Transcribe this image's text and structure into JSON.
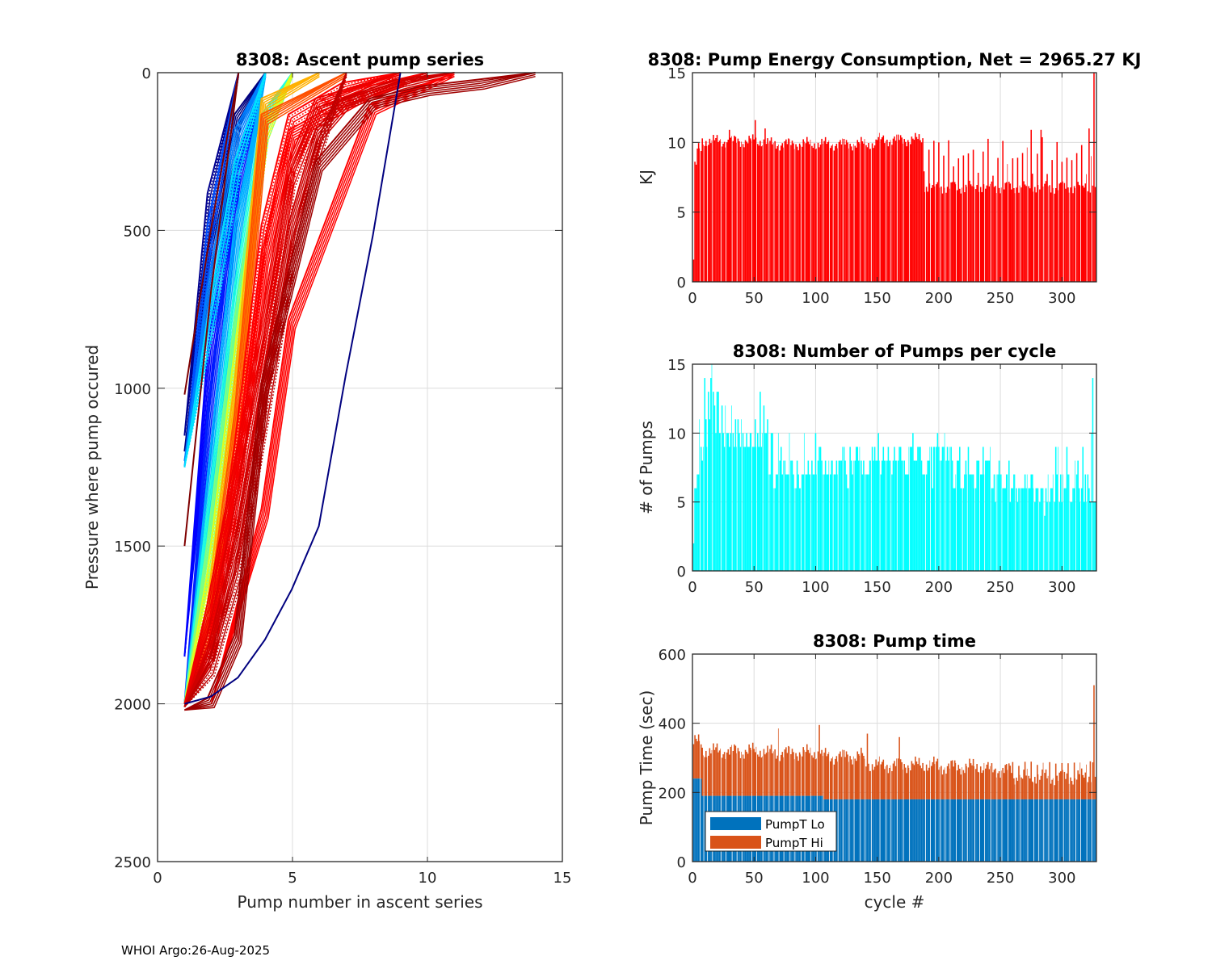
{
  "footer": "WHOI Argo:26-Aug-2025",
  "chart_data": [
    {
      "type": "line",
      "id": "ascent",
      "title": "8308: Ascent pump series",
      "xlabel": "Pump number in ascent series",
      "ylabel": "Pressure where pump occured",
      "xlim": [
        0,
        15
      ],
      "ylim": [
        0,
        2500
      ],
      "y_reversed": true,
      "xticks": [
        "0",
        "5",
        "10",
        "15"
      ],
      "yticks": [
        "0",
        "500",
        "1000",
        "1500",
        "2000",
        "2500"
      ],
      "grid": true,
      "colormap": "jet (by cycle)",
      "series": [
        {
          "color": "#00007f",
          "x": [
            1,
            2,
            3,
            4
          ],
          "y": [
            1200,
            600,
            150,
            0
          ]
        },
        {
          "color": "#00008f",
          "x": [
            1,
            2,
            3
          ],
          "y": [
            1150,
            400,
            0
          ]
        },
        {
          "color": "#0000ff",
          "x": [
            1,
            2,
            3,
            4
          ],
          "y": [
            1850,
            900,
            300,
            0
          ]
        },
        {
          "color": "#0020ff",
          "x": [
            1,
            2,
            3,
            4
          ],
          "y": [
            2000,
            1100,
            350,
            0
          ]
        },
        {
          "color": "#0050ff",
          "x": [
            1,
            2,
            3
          ],
          "y": [
            1250,
            500,
            0
          ]
        },
        {
          "color": "#0080ff",
          "x": [
            1,
            2,
            3,
            4
          ],
          "y": [
            1230,
            700,
            200,
            0
          ]
        },
        {
          "color": "#00b0ff",
          "x": [
            1,
            2,
            3,
            4
          ],
          "y": [
            2000,
            1300,
            500,
            0
          ]
        },
        {
          "color": "#00e0ff",
          "x": [
            1,
            2,
            3,
            4
          ],
          "y": [
            1250,
            800,
            300,
            0
          ]
        },
        {
          "color": "#20ffdf",
          "x": [
            1,
            2,
            3,
            4,
            5
          ],
          "y": [
            2000,
            1400,
            700,
            150,
            0
          ]
        },
        {
          "color": "#80ff7f",
          "x": [
            1,
            2,
            3,
            4,
            5
          ],
          "y": [
            2000,
            1500,
            800,
            200,
            0
          ]
        },
        {
          "color": "#dfff20",
          "x": [
            1,
            2,
            3,
            4,
            5
          ],
          "y": [
            2000,
            1600,
            900,
            200,
            0
          ]
        },
        {
          "color": "#ffb000",
          "x": [
            1,
            2,
            3,
            4,
            6
          ],
          "y": [
            2010,
            1700,
            1000,
            100,
            0
          ]
        },
        {
          "color": "#ff5000",
          "x": [
            1,
            2,
            3,
            4,
            7
          ],
          "y": [
            2010,
            1750,
            1100,
            150,
            0
          ]
        },
        {
          "color": "#ff0000",
          "x": [
            1,
            2,
            3,
            4,
            5,
            7,
            9
          ],
          "y": [
            2000,
            1800,
            1200,
            500,
            150,
            50,
            0
          ]
        },
        {
          "color": "#ff0000",
          "x": [
            1,
            2,
            3,
            4,
            5,
            8,
            10
          ],
          "y": [
            2000,
            1850,
            1300,
            600,
            200,
            60,
            0
          ]
        },
        {
          "color": "#ef0000",
          "x": [
            1,
            2,
            3,
            4,
            5,
            6,
            9
          ],
          "y": [
            2000,
            1700,
            1250,
            800,
            300,
            100,
            0
          ]
        },
        {
          "color": "#df0000",
          "x": [
            1,
            2,
            3,
            4,
            5,
            6,
            10
          ],
          "y": [
            2010,
            1800,
            1400,
            900,
            350,
            130,
            0
          ]
        },
        {
          "color": "#cf0000",
          "x": [
            1,
            2,
            3,
            4,
            5,
            6,
            7,
            9,
            11
          ],
          "y": [
            2010,
            1850,
            1500,
            1000,
            500,
            200,
            100,
            40,
            0
          ]
        },
        {
          "color": "#ff0000",
          "x": [
            2,
            4,
            5,
            8,
            11
          ],
          "y": [
            2000,
            1400,
            800,
            120,
            0
          ]
        },
        {
          "color": "#bf0000",
          "x": [
            1,
            2,
            3,
            4,
            5,
            6,
            7
          ],
          "y": [
            2010,
            1900,
            1600,
            1100,
            600,
            250,
            0
          ]
        },
        {
          "color": "#9f0000",
          "x": [
            1,
            2,
            3,
            4,
            6,
            8,
            10,
            12,
            14
          ],
          "y": [
            2020,
            2000,
            1800,
            1000,
            300,
            100,
            60,
            40,
            0
          ]
        },
        {
          "color": "#7f0000",
          "x": [
            1,
            2,
            3
          ],
          "y": [
            1020,
            500,
            0
          ]
        },
        {
          "color": "#7f0000",
          "x": [
            1,
            2,
            3
          ],
          "y": [
            1500,
            700,
            0
          ]
        },
        {
          "color": "#00007f",
          "x": [
            1,
            2,
            3,
            4,
            5,
            6,
            7,
            8,
            9
          ],
          "y": [
            2000,
            1980,
            1920,
            1800,
            1640,
            1440,
            960,
            520,
            0
          ]
        }
      ]
    },
    {
      "type": "bar",
      "id": "energy",
      "title": "8308: Pump Energy Consumption,  Net = 2965.27 KJ",
      "xlabel": "",
      "ylabel": "KJ",
      "xlim": [
        0,
        328
      ],
      "ylim": [
        0,
        15
      ],
      "xticks": [
        "0",
        "50",
        "100",
        "150",
        "200",
        "250",
        "300"
      ],
      "yticks": [
        "0",
        "5",
        "10",
        "15"
      ],
      "color": "#ff0000",
      "grid": true,
      "segments": [
        {
          "from": 1,
          "to": 2,
          "value": 1.7
        },
        {
          "from": 2,
          "to": 4,
          "value": 8.2
        },
        {
          "from": 4,
          "to": 8,
          "value": 9.5
        },
        {
          "from": 8,
          "to": 60,
          "value": 10.1
        },
        {
          "from": 60,
          "to": 150,
          "value": 9.9
        },
        {
          "from": 150,
          "to": 188,
          "value": 10.2
        },
        {
          "from": 188,
          "to": 328,
          "value": 6.8
        }
      ],
      "spikes": [
        {
          "cycle": 51,
          "value": 11.6
        },
        {
          "cycle": 30,
          "value": 10.9
        },
        {
          "cycle": 59,
          "value": 11.0
        },
        {
          "cycle": 200,
          "value": 10.0
        },
        {
          "cycle": 275,
          "value": 10.9
        },
        {
          "cycle": 283,
          "value": 10.9
        },
        {
          "cycle": 322,
          "value": 11.0
        },
        {
          "cycle": 326,
          "value": 15.0
        }
      ]
    },
    {
      "type": "bar",
      "id": "pumps",
      "title": "8308: Number of Pumps per cycle",
      "xlabel": "",
      "ylabel": "# of Pumps",
      "xlim": [
        0,
        328
      ],
      "ylim": [
        0,
        15
      ],
      "xticks": [
        "0",
        "50",
        "100",
        "150",
        "200",
        "250",
        "300"
      ],
      "yticks": [
        "0",
        "5",
        "10",
        "15"
      ],
      "color": "#00ffff",
      "grid": true,
      "values": [
        2,
        6,
        6,
        7,
        7,
        11,
        9,
        8,
        9,
        14,
        11,
        9,
        13,
        11,
        14,
        15,
        13,
        12,
        10,
        13,
        13,
        10,
        10,
        12,
        10,
        9,
        12,
        10,
        10,
        9,
        10,
        12,
        10,
        9,
        11,
        9,
        11,
        10,
        9,
        11,
        10,
        9,
        9,
        10,
        9,
        9,
        10,
        10,
        9,
        9,
        11,
        9,
        10,
        9,
        13,
        9,
        10,
        12,
        10,
        10,
        11,
        7,
        7,
        10,
        10,
        6,
        6,
        7,
        7,
        10,
        8,
        9,
        7,
        8,
        8,
        7,
        7,
        7,
        10,
        8,
        8,
        7,
        6,
        6,
        8,
        7,
        6,
        6,
        7,
        7,
        10,
        7,
        7,
        8,
        7,
        7,
        8,
        7,
        7,
        10,
        7,
        8,
        9,
        9,
        8,
        7,
        7,
        8,
        7,
        7,
        8,
        7,
        8,
        8,
        7,
        7,
        8,
        7,
        8,
        8,
        8,
        9,
        9,
        8,
        7,
        6,
        6,
        9,
        8,
        7,
        8,
        8,
        9,
        9,
        8,
        9,
        8,
        7,
        8,
        7,
        7,
        7,
        7,
        8,
        8,
        9,
        8,
        9,
        8,
        8,
        10,
        8,
        7,
        8,
        9,
        8,
        8,
        8,
        9,
        8,
        8,
        7,
        8,
        9,
        8,
        8,
        8,
        9,
        9,
        8,
        8,
        8,
        7,
        7,
        7,
        9,
        9,
        9,
        10,
        8,
        8,
        8,
        9,
        9,
        9,
        8,
        7,
        7,
        7,
        7,
        8,
        8,
        9,
        9,
        6,
        9,
        9,
        9,
        10,
        9,
        8,
        8,
        9,
        9,
        10,
        8,
        9,
        8,
        9,
        9,
        8,
        6,
        6,
        7,
        8,
        8,
        9,
        6,
        6,
        6,
        7,
        8,
        7,
        9,
        7,
        7,
        7,
        7,
        6,
        6,
        8,
        8,
        8,
        7,
        7,
        9,
        7,
        8,
        8,
        8,
        8,
        9,
        6,
        6,
        7,
        5,
        7,
        7,
        8,
        7,
        7,
        6,
        6,
        6,
        7,
        7,
        8,
        5,
        6,
        6,
        7,
        7,
        6,
        5,
        6,
        6,
        6,
        6,
        6,
        7,
        6,
        7,
        6,
        6,
        7,
        7,
        6,
        5,
        6,
        6,
        6,
        5,
        6,
        6,
        6,
        4,
        6,
        5,
        7,
        5,
        6,
        6,
        7,
        5,
        9,
        7,
        9,
        5,
        7,
        5,
        7,
        6,
        6,
        9,
        7,
        7,
        5,
        5,
        6,
        6,
        8,
        7,
        8,
        6,
        5,
        6,
        9,
        5,
        7,
        5,
        7,
        6,
        5,
        10,
        14,
        5,
        5,
        5,
        5
      ]
    },
    {
      "type": "bar",
      "stacked": true,
      "id": "pumptime",
      "title": "8308: Pump time",
      "xlabel": "cycle #",
      "ylabel": "Pump Time (sec)",
      "xlim": [
        0,
        328
      ],
      "ylim": [
        0,
        600
      ],
      "xticks": [
        "0",
        "50",
        "100",
        "150",
        "200",
        "250",
        "300"
      ],
      "yticks": [
        "0",
        "200",
        "400",
        "600"
      ],
      "legend": {
        "position": "bottom-left",
        "entries": [
          {
            "label": "PumpT Lo",
            "color": "#0072bd"
          },
          {
            "label": "PumpT Hi",
            "color": "#d95319"
          }
        ]
      },
      "grid": true,
      "series": [
        {
          "name": "PumpT Lo",
          "color": "#0072bd",
          "segments": [
            {
              "from": 1,
              "to": 8,
              "value": 240
            },
            {
              "from": 8,
              "to": 107,
              "value": 190
            },
            {
              "from": 107,
              "to": 328,
              "value": 180
            }
          ]
        },
        {
          "name": "PumpT Hi (total)",
          "color": "#d95319",
          "segments": [
            {
              "from": 1,
              "to": 8,
              "value": 345
            },
            {
              "from": 8,
              "to": 60,
              "value": 320
            },
            {
              "from": 60,
              "to": 105,
              "value": 315
            },
            {
              "from": 105,
              "to": 140,
              "value": 305
            },
            {
              "from": 140,
              "to": 200,
              "value": 280
            },
            {
              "from": 200,
              "to": 240,
              "value": 275
            },
            {
              "from": 240,
              "to": 260,
              "value": 265
            },
            {
              "from": 260,
              "to": 328,
              "value": 245
            }
          ],
          "spikes": [
            {
              "cycle": 103,
              "value": 395
            },
            {
              "cycle": 70,
              "value": 385
            },
            {
              "cycle": 142,
              "value": 370
            },
            {
              "cycle": 168,
              "value": 360
            },
            {
              "cycle": 323,
              "value": 290
            },
            {
              "cycle": 326,
              "value": 510
            }
          ]
        }
      ]
    }
  ]
}
